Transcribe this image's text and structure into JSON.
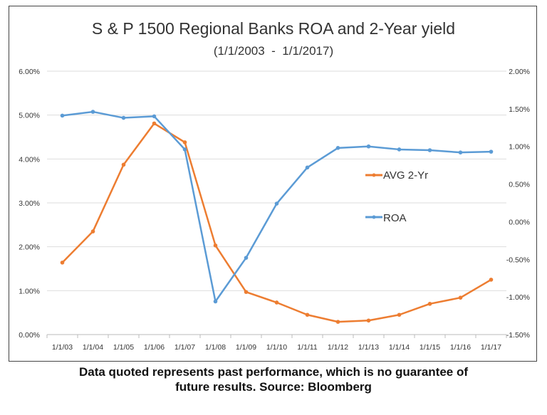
{
  "chart_data": {
    "type": "line",
    "title": "S & P 1500 Regional Banks ROA and 2-Year yield",
    "subtitle": "(1/1/2003  -  1/1/2017)",
    "categories": [
      "1/1/03",
      "1/1/04",
      "1/1/05",
      "1/1/06",
      "1/1/07",
      "1/1/08",
      "1/1/09",
      "1/1/10",
      "1/1/11",
      "1/1/12",
      "1/1/13",
      "1/1/14",
      "1/1/15",
      "1/1/16",
      "1/1/17"
    ],
    "left_axis": {
      "ticks": [
        "0.00%",
        "1.00%",
        "2.00%",
        "3.00%",
        "4.00%",
        "5.00%",
        "6.00%"
      ],
      "ylim": [
        0,
        6
      ]
    },
    "right_axis": {
      "ticks": [
        "-1.50%",
        "-1.00%",
        "-0.50%",
        "0.00%",
        "0.50%",
        "1.00%",
        "1.50%",
        "2.00%"
      ],
      "ylim": [
        -1.5,
        2
      ]
    },
    "grid": true,
    "legend_placement": "right-center",
    "series": [
      {
        "name": "AVG 2-Yr",
        "axis": "left",
        "color": "#ED7D31",
        "values": [
          1.64,
          2.35,
          3.87,
          4.81,
          4.38,
          2.03,
          0.97,
          0.73,
          0.45,
          0.29,
          0.32,
          0.45,
          0.7,
          0.84,
          1.25
        ]
      },
      {
        "name": "ROA",
        "axis": "right",
        "color": "#5B9BD5",
        "values": [
          1.41,
          1.46,
          1.38,
          1.4,
          0.96,
          -1.06,
          -0.48,
          0.24,
          0.72,
          0.98,
          1.0,
          0.96,
          0.95,
          0.92,
          0.93
        ]
      }
    ]
  },
  "footer": {
    "line1": "Data quoted represents past performance, which is no guarantee of",
    "line2": "future results. Source: Bloomberg"
  }
}
